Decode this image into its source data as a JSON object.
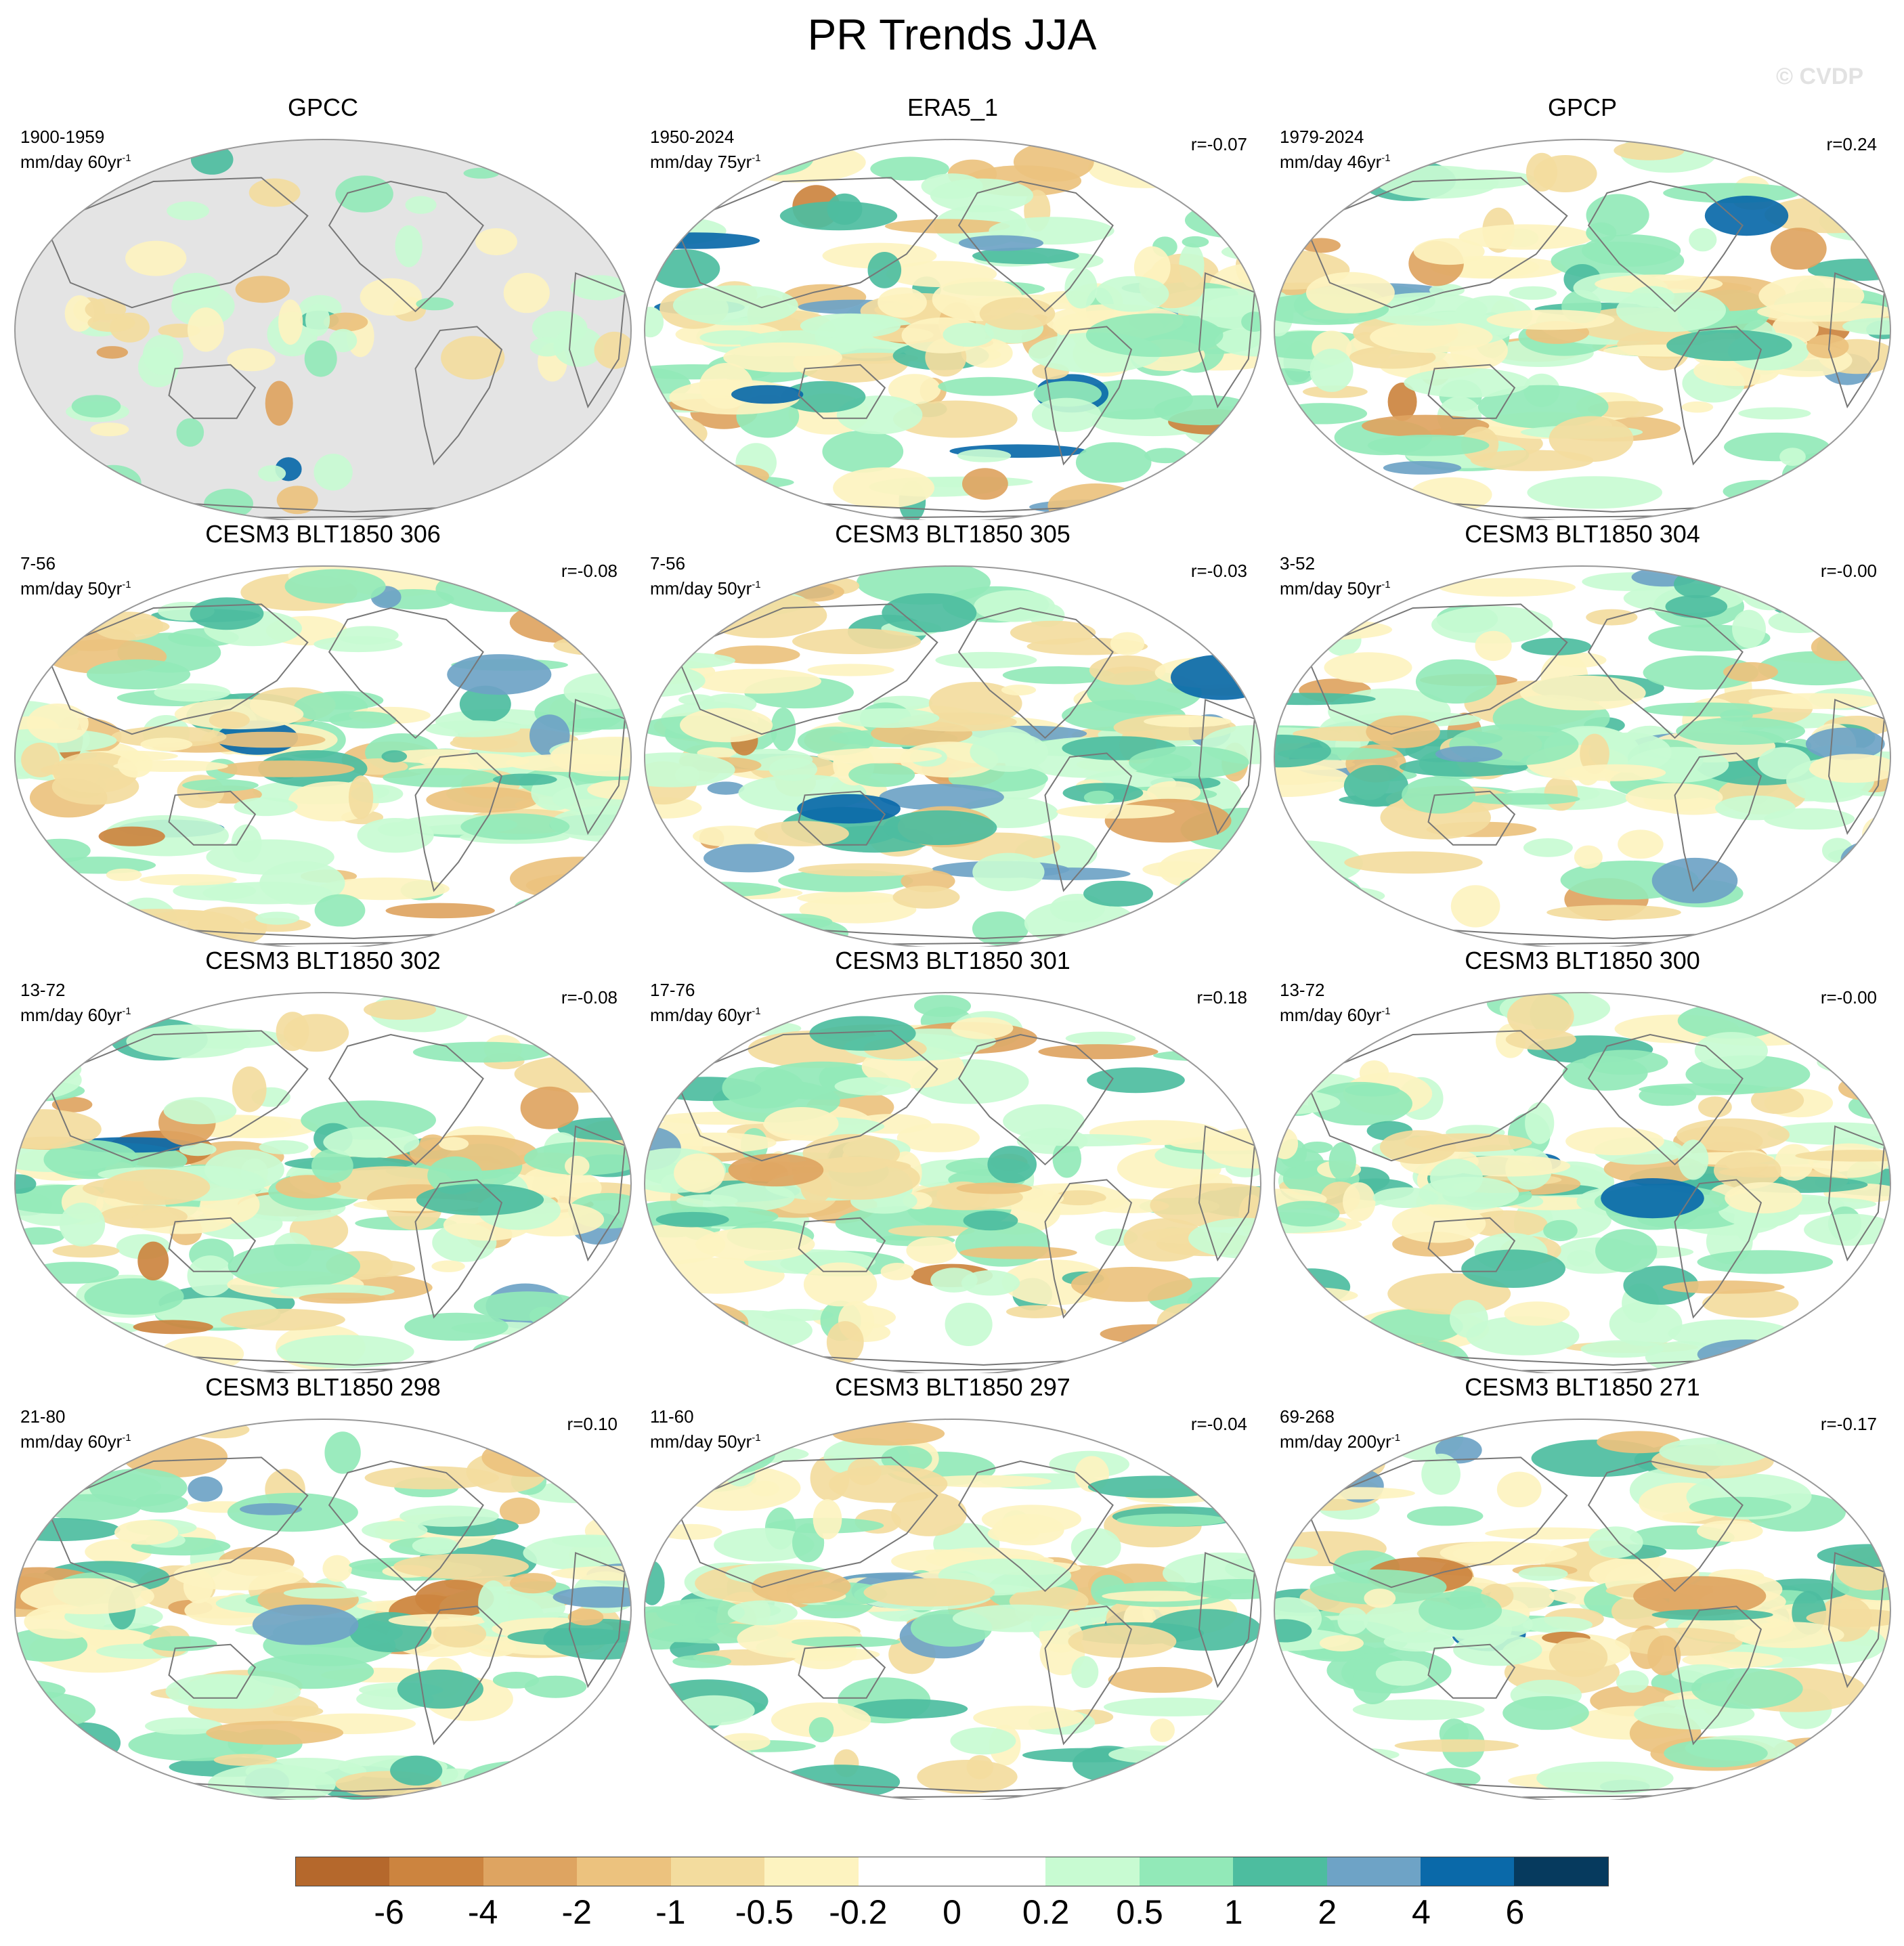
{
  "title": "PR Trends JJA",
  "watermark": "© CVDP",
  "panels": [
    {
      "title": "GPCC",
      "period": "1900-1959",
      "units": "mm/day 60yr",
      "units_exp": "-1",
      "r": "",
      "mask_land_only": true
    },
    {
      "title": "ERA5_1",
      "period": "1950-2024",
      "units": "mm/day 75yr",
      "units_exp": "-1",
      "r": "r=-0.07"
    },
    {
      "title": "GPCP",
      "period": "1979-2024",
      "units": "mm/day 46yr",
      "units_exp": "-1",
      "r": "r=0.24"
    },
    {
      "title": "CESM3 BLT1850 306",
      "period": "7-56",
      "units": "mm/day 50yr",
      "units_exp": "-1",
      "r": "r=-0.08"
    },
    {
      "title": "CESM3 BLT1850 305",
      "period": "7-56",
      "units": "mm/day 50yr",
      "units_exp": "-1",
      "r": "r=-0.03"
    },
    {
      "title": "CESM3 BLT1850 304",
      "period": "3-52",
      "units": "mm/day 50yr",
      "units_exp": "-1",
      "r": "r=-0.00"
    },
    {
      "title": "CESM3 BLT1850 302",
      "period": "13-72",
      "units": "mm/day 60yr",
      "units_exp": "-1",
      "r": "r=-0.08"
    },
    {
      "title": "CESM3 BLT1850 301",
      "period": "17-76",
      "units": "mm/day 60yr",
      "units_exp": "-1",
      "r": "r=0.18"
    },
    {
      "title": "CESM3 BLT1850 300",
      "period": "13-72",
      "units": "mm/day 60yr",
      "units_exp": "-1",
      "r": "r=-0.00"
    },
    {
      "title": "CESM3 BLT1850 298",
      "period": "21-80",
      "units": "mm/day 60yr",
      "units_exp": "-1",
      "r": "r=0.10"
    },
    {
      "title": "CESM3 BLT1850 297",
      "period": "11-60",
      "units": "mm/day 50yr",
      "units_exp": "-1",
      "r": "r=-0.04"
    },
    {
      "title": "CESM3 BLT1850 271",
      "period": "69-268",
      "units": "mm/day 200yr",
      "units_exp": "-1",
      "r": "r=-0.17"
    }
  ],
  "colorbar": {
    "colors": [
      "#b5682c",
      "#cc843f",
      "#dea461",
      "#ecc27e",
      "#f3dc9e",
      "#fdf3c0",
      "#ffffff",
      "#ffffff",
      "#c8fbd2",
      "#92e9b8",
      "#4dbd9f",
      "#6ea3c6",
      "#0a69a9",
      "#063a5e"
    ],
    "tick_labels": [
      "-6",
      "-4",
      "-2",
      "-1",
      "-0.5",
      "-0.2",
      "0",
      "0.2",
      "0.5",
      "1",
      "2",
      "4",
      "6"
    ]
  },
  "map_colors": {
    "missing": "#e4e4e4",
    "coast": "#777777",
    "outline": "#999999"
  }
}
